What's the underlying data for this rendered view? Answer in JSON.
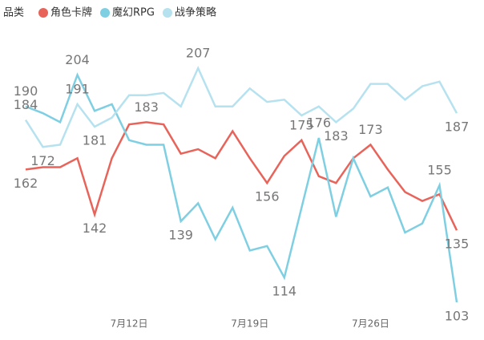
{
  "chart_data": {
    "type": "line",
    "legend_title": "品类",
    "categories": [
      null,
      null,
      null,
      null,
      null,
      null,
      "7月12日",
      null,
      null,
      null,
      null,
      null,
      null,
      "7月19日",
      null,
      null,
      null,
      null,
      null,
      null,
      "7月26日",
      null,
      null,
      null,
      null,
      null
    ],
    "series": [
      {
        "name": "角色卡牌",
        "color": "#e8645a",
        "values": [
          162,
          163,
          163,
          167,
          142,
          167,
          182,
          183,
          182,
          169,
          171,
          167,
          179,
          167,
          156,
          168,
          175,
          159,
          156,
          167,
          173,
          162,
          152,
          148,
          151,
          135
        ],
        "value_labels": [
          "162",
          null,
          null,
          null,
          "142",
          null,
          null,
          "183",
          null,
          null,
          null,
          null,
          null,
          null,
          "156",
          null,
          "175",
          null,
          null,
          null,
          "173",
          null,
          null,
          null,
          null,
          "135"
        ]
      },
      {
        "name": "魔幻RPG",
        "color": "#7fcfe3",
        "values": [
          190,
          187,
          183,
          204,
          188,
          191,
          175,
          173,
          173,
          139,
          147,
          131,
          145,
          126,
          128,
          114,
          145,
          176,
          141,
          167,
          150,
          154,
          134,
          138,
          155,
          103
        ],
        "value_labels": [
          "190",
          null,
          null,
          "204",
          null,
          null,
          null,
          null,
          null,
          "139",
          null,
          null,
          null,
          null,
          null,
          "114",
          null,
          "176",
          null,
          null,
          null,
          null,
          null,
          null,
          "155",
          "103"
        ]
      },
      {
        "name": "战争策略",
        "color": "#b6e2f0",
        "values": [
          184,
          172,
          173,
          191,
          181,
          185,
          195,
          195,
          196,
          190,
          207,
          190,
          190,
          198,
          192,
          193,
          186,
          190,
          183,
          189,
          200,
          200,
          193,
          199,
          201,
          187
        ],
        "value_labels": [
          "184",
          "172",
          null,
          "191",
          "181",
          null,
          null,
          null,
          null,
          null,
          "207",
          null,
          null,
          null,
          null,
          null,
          null,
          null,
          "183",
          null,
          null,
          null,
          null,
          null,
          null,
          "187"
        ]
      }
    ]
  }
}
